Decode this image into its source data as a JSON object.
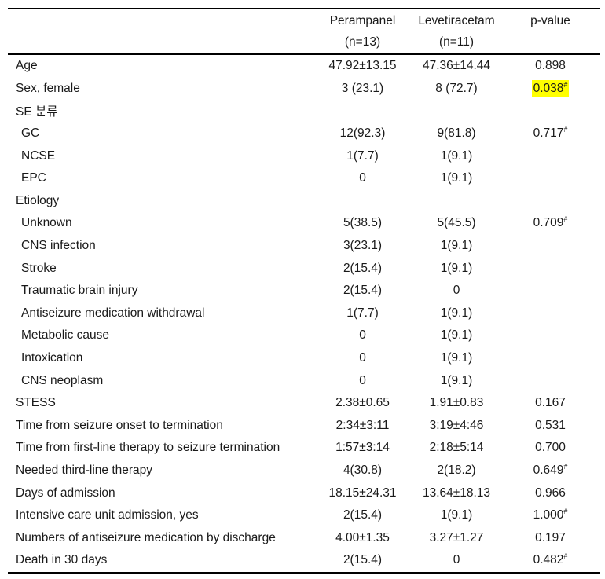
{
  "table": {
    "highlight_color": "#ffff00",
    "columns": [
      {
        "label": "Perampanel",
        "sublabel": "(n=13)"
      },
      {
        "label": "Levetiracetam",
        "sublabel": "(n=11)"
      },
      {
        "label": "p-value",
        "sublabel": ""
      }
    ],
    "rows": [
      {
        "label": "Age",
        "indent": 0,
        "perampanel": "47.92±13.15",
        "levetiracetam": "47.36±14.44",
        "p_value": "0.898",
        "p_sup": "",
        "p_highlight": false
      },
      {
        "label": "Sex, female",
        "indent": 0,
        "perampanel": "3 (23.1)",
        "levetiracetam": "8 (72.7)",
        "p_value": "0.038",
        "p_sup": "#",
        "p_highlight": true
      },
      {
        "label": "SE 분류",
        "indent": 0,
        "perampanel": "",
        "levetiracetam": "",
        "p_value": "",
        "p_sup": "",
        "p_highlight": false
      },
      {
        "label": "GC",
        "indent": 1,
        "perampanel": "12(92.3)",
        "levetiracetam": "9(81.8)",
        "p_value": "0.717",
        "p_sup": "#",
        "p_highlight": false
      },
      {
        "label": "NCSE",
        "indent": 1,
        "perampanel": "1(7.7)",
        "levetiracetam": "1(9.1)",
        "p_value": "",
        "p_sup": "",
        "p_highlight": false
      },
      {
        "label": "EPC",
        "indent": 1,
        "perampanel": "0",
        "levetiracetam": "1(9.1)",
        "p_value": "",
        "p_sup": "",
        "p_highlight": false
      },
      {
        "label": "Etiology",
        "indent": 0,
        "perampanel": "",
        "levetiracetam": "",
        "p_value": "",
        "p_sup": "",
        "p_highlight": false
      },
      {
        "label": "Unknown",
        "indent": 1,
        "perampanel": "5(38.5)",
        "levetiracetam": "5(45.5)",
        "p_value": "0.709",
        "p_sup": "#",
        "p_highlight": false
      },
      {
        "label": "CNS infection",
        "indent": 1,
        "perampanel": "3(23.1)",
        "levetiracetam": "1(9.1)",
        "p_value": "",
        "p_sup": "",
        "p_highlight": false
      },
      {
        "label": "Stroke",
        "indent": 1,
        "perampanel": "2(15.4)",
        "levetiracetam": "1(9.1)",
        "p_value": "",
        "p_sup": "",
        "p_highlight": false
      },
      {
        "label": "Traumatic brain injury",
        "indent": 1,
        "perampanel": "2(15.4)",
        "levetiracetam": "0",
        "p_value": "",
        "p_sup": "",
        "p_highlight": false
      },
      {
        "label": "Antiseizure medication withdrawal",
        "indent": 1,
        "perampanel": "1(7.7)",
        "levetiracetam": "1(9.1)",
        "p_value": "",
        "p_sup": "",
        "p_highlight": false
      },
      {
        "label": "Metabolic cause",
        "indent": 1,
        "perampanel": "0",
        "levetiracetam": "1(9.1)",
        "p_value": "",
        "p_sup": "",
        "p_highlight": false
      },
      {
        "label": "Intoxication",
        "indent": 1,
        "perampanel": "0",
        "levetiracetam": "1(9.1)",
        "p_value": "",
        "p_sup": "",
        "p_highlight": false
      },
      {
        "label": "CNS neoplasm",
        "indent": 1,
        "perampanel": "0",
        "levetiracetam": "1(9.1)",
        "p_value": "",
        "p_sup": "",
        "p_highlight": false
      },
      {
        "label": "STESS",
        "indent": 0,
        "perampanel": "2.38±0.65",
        "levetiracetam": "1.91±0.83",
        "p_value": "0.167",
        "p_sup": "",
        "p_highlight": false
      },
      {
        "label": "Time from seizure onset to termination",
        "indent": 0,
        "perampanel": "2:34±3:11",
        "levetiracetam": "3:19±4:46",
        "p_value": "0.531",
        "p_sup": "",
        "p_highlight": false
      },
      {
        "label": "Time from first-line therapy to seizure termination",
        "indent": 0,
        "perampanel": "1:57±3:14",
        "levetiracetam": "2:18±5:14",
        "p_value": "0.700",
        "p_sup": "",
        "p_highlight": false
      },
      {
        "label": "Needed third-line therapy",
        "indent": 0,
        "perampanel": "4(30.8)",
        "levetiracetam": "2(18.2)",
        "p_value": "0.649",
        "p_sup": "#",
        "p_highlight": false
      },
      {
        "label": "Days of admission",
        "indent": 0,
        "perampanel": "18.15±24.31",
        "levetiracetam": "13.64±18.13",
        "p_value": "0.966",
        "p_sup": "",
        "p_highlight": false
      },
      {
        "label": "Intensive care unit admission, yes",
        "indent": 0,
        "perampanel": "2(15.4)",
        "levetiracetam": "1(9.1)",
        "p_value": "1.000",
        "p_sup": "#",
        "p_highlight": false
      },
      {
        "label": "Numbers of antiseizure medication by discharge",
        "indent": 0,
        "perampanel": "4.00±1.35",
        "levetiracetam": "3.27±1.27",
        "p_value": "0.197",
        "p_sup": "",
        "p_highlight": false
      },
      {
        "label": "Death in 30 days",
        "indent": 0,
        "perampanel": "2(15.4)",
        "levetiracetam": "0",
        "p_value": "0.482",
        "p_sup": "#",
        "p_highlight": false
      }
    ]
  }
}
